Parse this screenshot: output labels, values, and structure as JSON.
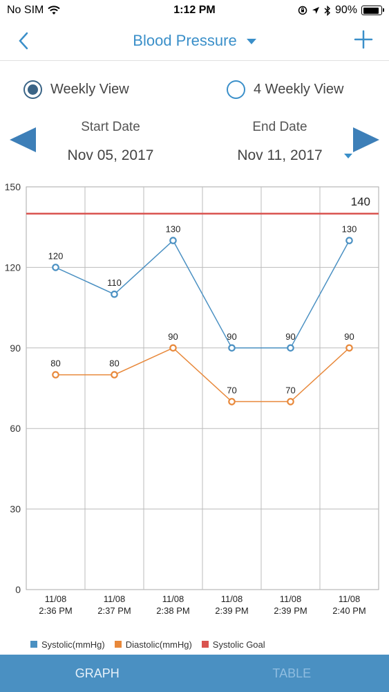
{
  "status_bar": {
    "carrier": "No SIM",
    "time": "1:12 PM",
    "battery": "90%",
    "battery_level": 0.9,
    "icons": [
      "wifi-icon",
      "orientation-lock-icon",
      "location-arrow-icon",
      "bluetooth-icon",
      "battery-icon"
    ]
  },
  "nav": {
    "title": "Blood Pressure",
    "back_icon": "chevron-left-icon",
    "add_icon": "plus-icon",
    "accent_color": "#3a8fc9"
  },
  "view_toggle": {
    "weekly_label": "Weekly View",
    "four_weekly_label": "4 Weekly View",
    "selected": "weekly"
  },
  "date_range": {
    "start_label": "Start Date",
    "start_value": "Nov 05, 2017",
    "end_label": "End Date",
    "end_value": "Nov 11, 2017"
  },
  "chart_data": {
    "type": "line",
    "categories": [
      [
        "11/08",
        "2:36 PM"
      ],
      [
        "11/08",
        "2:37 PM"
      ],
      [
        "11/08",
        "2:38 PM"
      ],
      [
        "11/08",
        "2:39 PM"
      ],
      [
        "11/08",
        "2:39 PM"
      ],
      [
        "11/08",
        "2:40 PM"
      ]
    ],
    "series": [
      {
        "name": "Systolic(mmHg)",
        "color": "#4a90c2",
        "values": [
          120,
          110,
          130,
          90,
          90,
          130
        ]
      },
      {
        "name": "Diastolic(mmHg)",
        "color": "#e8883a",
        "values": [
          80,
          80,
          90,
          70,
          70,
          90
        ]
      }
    ],
    "goal": {
      "name": "Systolic Goal",
      "value": 140,
      "label": "140",
      "color": "#d9534f"
    },
    "ylim": [
      0,
      150
    ],
    "yticks": [
      0,
      30,
      60,
      90,
      120,
      150
    ],
    "grid": true,
    "legend_position": "bottom-left"
  },
  "tabs": {
    "graph_label": "GRAPH",
    "table_label": "TABLE",
    "active": "graph"
  }
}
